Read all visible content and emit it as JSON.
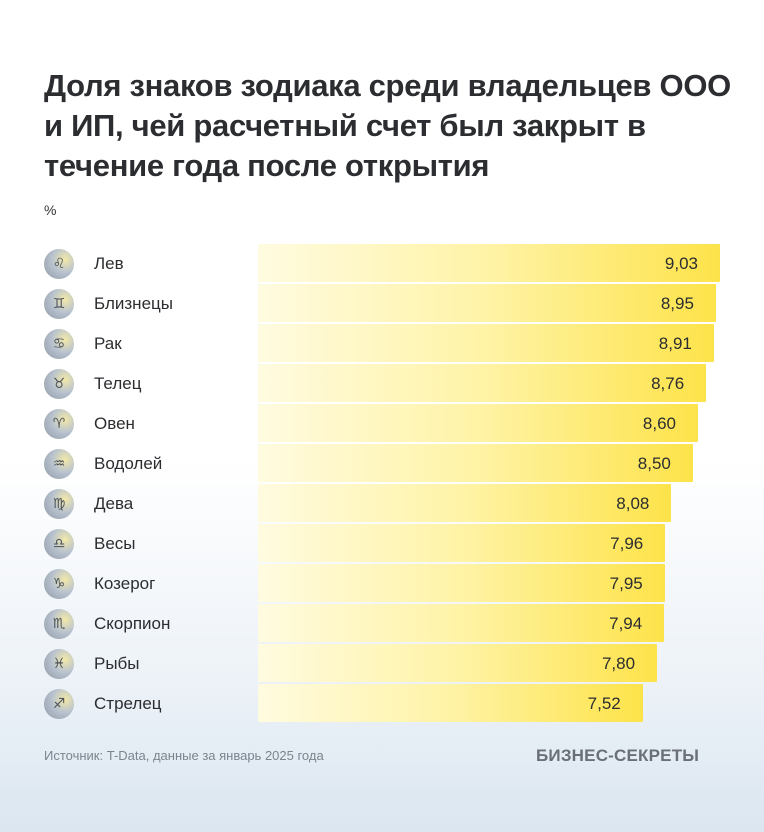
{
  "chart_data": {
    "type": "bar",
    "orientation": "horizontal",
    "title": "Доля знаков зодиака среди владельцев ООО и ИП, чей расчетный счет был закрыт в течение года после открытия",
    "unit": "%",
    "categories": [
      "Лев",
      "Близнецы",
      "Рак",
      "Телец",
      "Овен",
      "Водолей",
      "Дева",
      "Весы",
      "Козерог",
      "Скорпион",
      "Рыбы",
      "Стрелец"
    ],
    "icons": [
      "leo-icon",
      "gemini-icon",
      "cancer-icon",
      "taurus-icon",
      "aries-icon",
      "aquarius-icon",
      "virgo-icon",
      "libra-icon",
      "capricorn-icon",
      "scorpio-icon",
      "pisces-icon",
      "sagittarius-icon"
    ],
    "labels": [
      "9,03",
      "8,95",
      "8,91",
      "8,76",
      "8,60",
      "8,50",
      "8,08",
      "7,96",
      "7,95",
      "7,94",
      "7,80",
      "7,52"
    ],
    "values": [
      9.03,
      8.95,
      8.91,
      8.76,
      8.6,
      8.5,
      8.08,
      7.96,
      7.95,
      7.94,
      7.8,
      7.52
    ],
    "xlim": [
      0,
      9.03
    ],
    "bar_color": "#fde34a"
  },
  "footer": {
    "source": "Источник: T-Data, данные за январь 2025 года",
    "brand": "БИЗНЕС-СЕКРЕТЫ"
  }
}
